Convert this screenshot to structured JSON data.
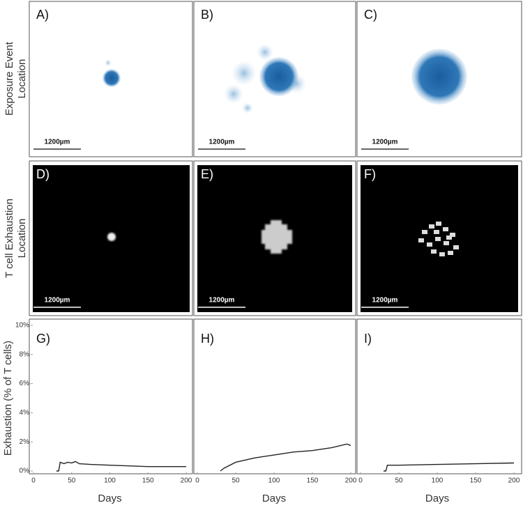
{
  "row_labels": [
    [
      "Exposure Event",
      "Location"
    ],
    [
      "T cell Exhaustion",
      "Location"
    ]
  ],
  "image_panels": [
    {
      "label": "A)",
      "scale_bar": "1200µm"
    },
    {
      "label": "B)",
      "scale_bar": "1200µm"
    },
    {
      "label": "C)",
      "scale_bar": "1200µm"
    },
    {
      "label": "D)",
      "scale_bar": "1200µm"
    },
    {
      "label": "E)",
      "scale_bar": "1200µm"
    },
    {
      "label": "F)",
      "scale_bar": "1200µm"
    }
  ],
  "chart_data": [
    {
      "type": "line",
      "label": "G)",
      "xlabel": "Days",
      "ylabel": "Exhaustion (% of T cells)",
      "x": [
        30,
        33,
        35,
        40,
        45,
        50,
        55,
        60,
        75,
        100,
        125,
        150,
        175,
        200
      ],
      "series": [
        {
          "color": "#222222",
          "values": [
            0,
            0,
            0.6,
            0.5,
            0.6,
            0.55,
            0.65,
            0.5,
            0.45,
            0.4,
            0.35,
            0.3,
            0.3,
            0.3
          ]
        }
      ],
      "xlim": [
        0,
        200
      ],
      "xticks": [
        0,
        50,
        100,
        150,
        200
      ],
      "ylim": [
        0,
        10
      ],
      "yticks": [
        {
          "value": 0,
          "label": "0%"
        },
        {
          "value": 2,
          "label": "2%"
        },
        {
          "value": 4,
          "label": "4%"
        },
        {
          "value": 6,
          "label": "6%"
        },
        {
          "value": 8,
          "label": "8%"
        },
        {
          "value": 10,
          "label": "10%"
        }
      ]
    },
    {
      "type": "line",
      "label": "H)",
      "xlabel": "Days",
      "x": [
        30,
        35,
        50,
        75,
        100,
        125,
        150,
        175,
        195,
        200
      ],
      "series": [
        {
          "color": "#222222",
          "values": [
            0,
            0.2,
            0.6,
            0.9,
            1.1,
            1.3,
            1.4,
            1.6,
            1.85,
            1.75
          ]
        }
      ],
      "xlim": [
        0,
        200
      ],
      "xticks": [
        0,
        50,
        100,
        150,
        200
      ],
      "ylim": [
        0,
        10
      ]
    },
    {
      "type": "line",
      "label": "I)",
      "xlabel": "Days",
      "x": [
        30,
        33,
        35,
        50,
        100,
        150,
        200
      ],
      "series": [
        {
          "color": "#222222",
          "values": [
            0,
            0,
            0.4,
            0.4,
            0.45,
            0.5,
            0.55
          ]
        }
      ],
      "xlim": [
        0,
        200
      ],
      "xticks": [
        0,
        50,
        100,
        150,
        200
      ],
      "ylim": [
        0,
        10
      ]
    }
  ]
}
